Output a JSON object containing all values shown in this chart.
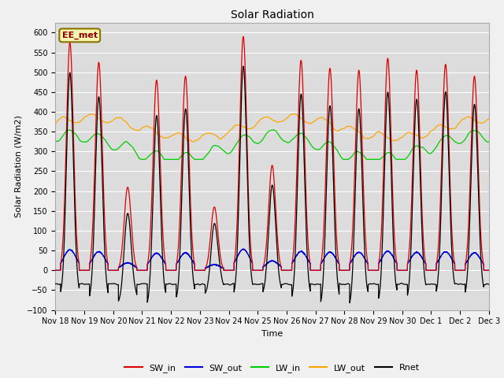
{
  "title": "Solar Radiation",
  "xlabel": "Time",
  "ylabel": "Solar Radiation (W/m2)",
  "ylim": [
    -100,
    625
  ],
  "yticks": [
    -100,
    -50,
    0,
    50,
    100,
    150,
    200,
    250,
    300,
    350,
    400,
    450,
    500,
    550,
    600
  ],
  "n_days": 15,
  "points_per_day": 288,
  "colors": {
    "SW_in": "#dd0000",
    "SW_out": "#0000dd",
    "LW_in": "#00cc00",
    "LW_out": "#ffa500",
    "Rnet": "#000000"
  },
  "plot_bg": "#dcdcdc",
  "fig_bg": "#f0f0f0",
  "annotation_text": "EE_met",
  "annotation_color": "#8b0000",
  "annotation_bg": "#f5f5b0",
  "annotation_edge": "#8b7000"
}
